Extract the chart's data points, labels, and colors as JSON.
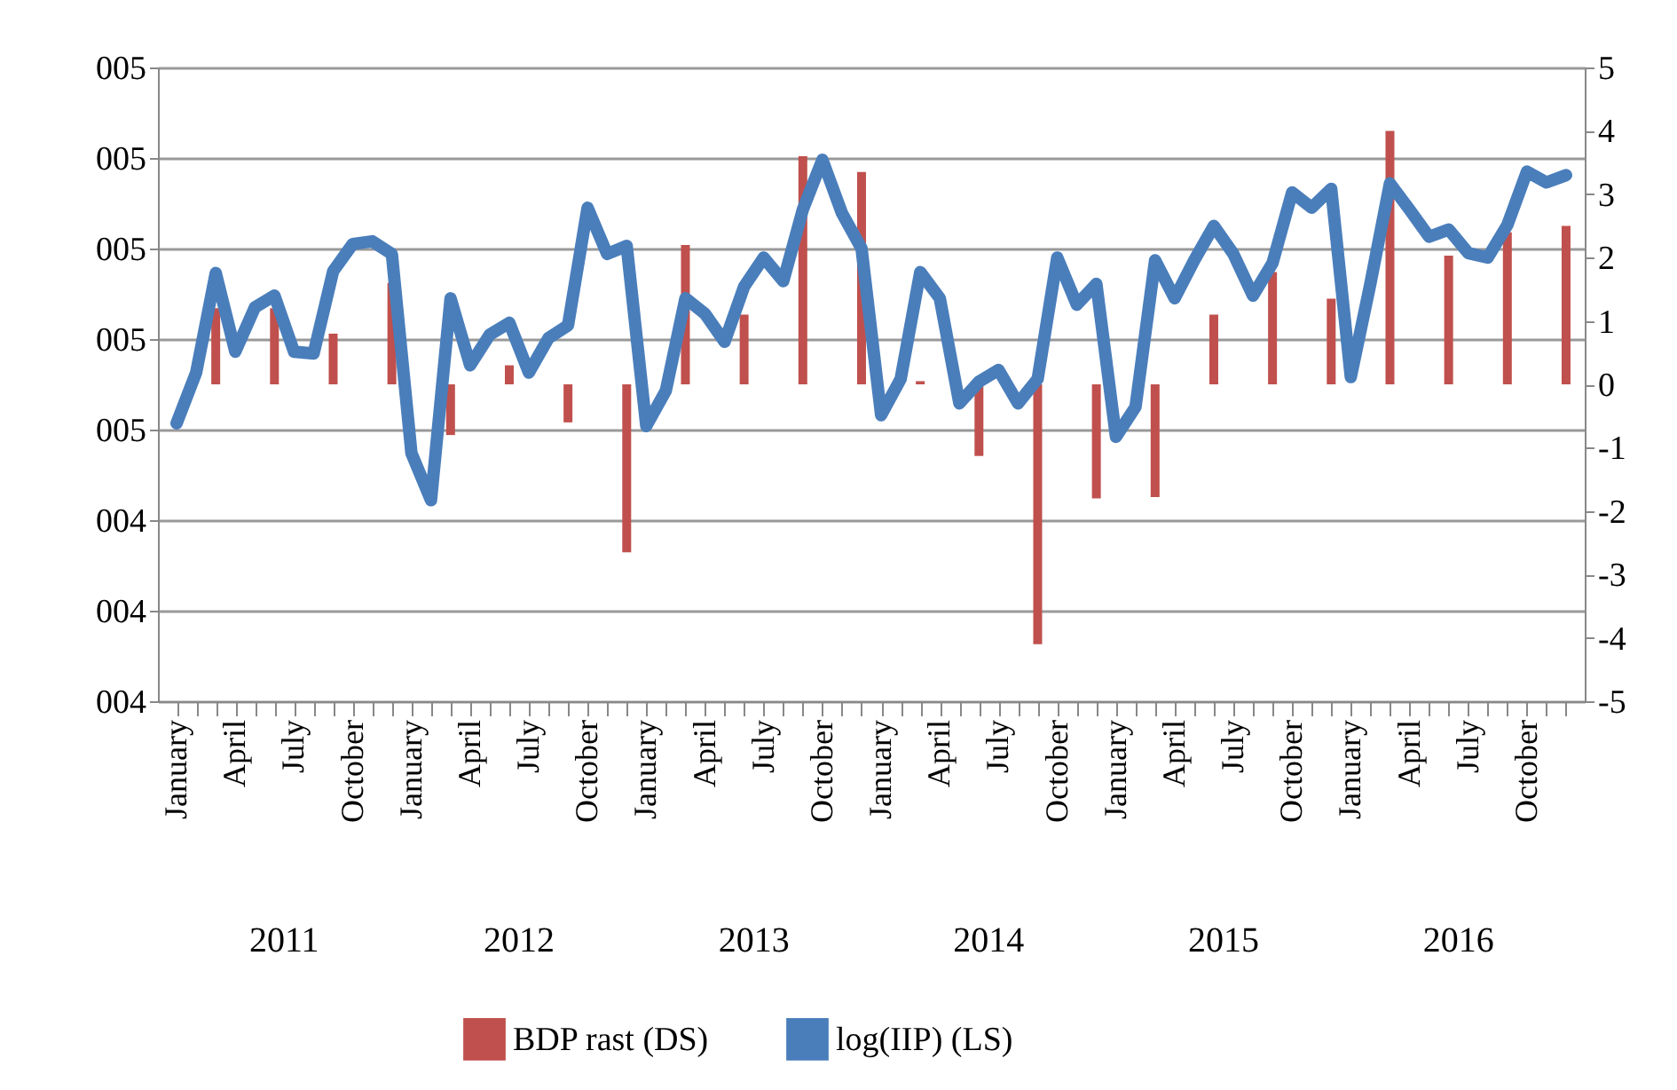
{
  "chart_data": {
    "type": "bar",
    "categories": [
      "January",
      null,
      null,
      "April",
      null,
      null,
      "July",
      null,
      null,
      "October",
      null,
      null,
      "January",
      null,
      null,
      "April",
      null,
      null,
      "July",
      null,
      null,
      "October",
      null,
      null,
      "January",
      null,
      null,
      "April",
      null,
      null,
      "July",
      null,
      null,
      "October",
      null,
      null,
      "January",
      null,
      null,
      "April",
      null,
      null,
      "July",
      null,
      null,
      "October",
      null,
      null,
      "January",
      null,
      null,
      "April",
      null,
      null,
      "July",
      null,
      null,
      "October",
      null,
      null,
      "January",
      null,
      null,
      "April",
      null,
      null,
      "July",
      null,
      null,
      "October",
      null,
      null
    ],
    "annotations": [
      "2011",
      "2012",
      "2013",
      "2014",
      "2015",
      "2016"
    ],
    "series": [
      {
        "name": "BDP rast (DS)",
        "type": "bar",
        "axis": "y2",
        "color": "#c0504d",
        "values": [
          null,
          null,
          1.2,
          null,
          null,
          1.2,
          null,
          null,
          0.8,
          null,
          null,
          1.6,
          null,
          null,
          -0.8,
          null,
          null,
          0.3,
          null,
          null,
          -0.6,
          null,
          null,
          -2.65,
          null,
          null,
          2.2,
          null,
          null,
          1.1,
          null,
          null,
          3.6,
          null,
          null,
          3.35,
          null,
          null,
          0.05,
          null,
          null,
          -1.13,
          null,
          null,
          -4.1,
          null,
          null,
          -1.8,
          null,
          null,
          -1.78,
          null,
          null,
          1.1,
          null,
          null,
          1.77,
          null,
          null,
          1.35,
          null,
          null,
          4.0,
          null,
          null,
          2.03,
          null,
          null,
          2.4,
          null,
          null,
          2.5
        ]
      },
      {
        "name": "log(IIP) (LS)",
        "type": "line",
        "color": "#4a7ebb",
        "values": [
          4.507,
          4.563,
          4.673,
          4.586,
          4.635,
          4.648,
          4.586,
          4.584,
          4.675,
          4.705,
          4.708,
          4.694,
          4.474,
          4.422,
          4.645,
          4.571,
          4.605,
          4.618,
          4.563,
          4.601,
          4.615,
          4.745,
          4.694,
          4.703,
          4.504,
          4.543,
          4.645,
          4.628,
          4.597,
          4.658,
          4.69,
          4.664,
          4.743,
          4.798,
          4.739,
          4.7,
          4.516,
          4.556,
          4.674,
          4.645,
          4.529,
          4.553,
          4.566,
          4.529,
          4.556,
          4.69,
          4.638,
          4.661,
          4.492,
          4.525,
          4.687,
          4.645,
          4.687,
          4.725,
          4.694,
          4.648,
          4.684,
          4.762,
          4.745,
          4.766,
          4.558,
          4.661,
          4.772,
          4.743,
          4.713,
          4.721,
          4.695,
          4.69,
          4.726,
          4.785,
          4.773,
          4.781
        ]
      }
    ],
    "ylim": [
      4.2,
      4.9
    ],
    "yticks": [
      {
        "value": 4.2,
        "label": "004"
      },
      {
        "value": 4.3,
        "label": "004"
      },
      {
        "value": 4.4,
        "label": "004"
      },
      {
        "value": 4.5,
        "label": "005"
      },
      {
        "value": 4.6,
        "label": "005"
      },
      {
        "value": 4.7,
        "label": "005"
      },
      {
        "value": 4.8,
        "label": "005"
      },
      {
        "value": 4.9,
        "label": "005"
      }
    ],
    "y2lim": [
      -5,
      5
    ],
    "y2ticks": [
      -5,
      -4,
      -3,
      -2,
      -1,
      0,
      1,
      2,
      3,
      4,
      5
    ],
    "grid": "y",
    "legend": "bottom"
  }
}
